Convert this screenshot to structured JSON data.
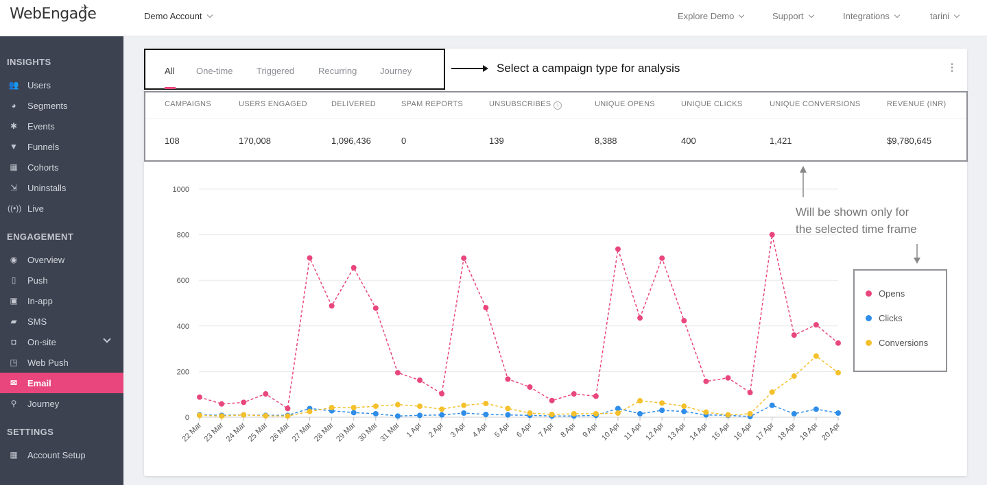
{
  "header": {
    "logo": "WebEngage",
    "account": "Demo Account",
    "nav": [
      "Explore Demo",
      "Support",
      "Integrations",
      "tarini"
    ]
  },
  "sidebar": {
    "sections": [
      {
        "title": "INSIGHTS",
        "items": [
          {
            "label": "Users",
            "icon": "users-icon"
          },
          {
            "label": "Segments",
            "icon": "pie-icon"
          },
          {
            "label": "Events",
            "icon": "star-icon"
          },
          {
            "label": "Funnels",
            "icon": "funnel-icon"
          },
          {
            "label": "Cohorts",
            "icon": "grid-icon"
          },
          {
            "label": "Uninstalls",
            "icon": "exit-icon"
          },
          {
            "label": "Live",
            "icon": "broadcast-icon"
          }
        ]
      },
      {
        "title": "ENGAGEMENT",
        "items": [
          {
            "label": "Overview",
            "icon": "eye-icon"
          },
          {
            "label": "Push",
            "icon": "mobile-icon"
          },
          {
            "label": "In-app",
            "icon": "inapp-icon"
          },
          {
            "label": "SMS",
            "icon": "chat-icon"
          },
          {
            "label": "On-site",
            "icon": "onsite-icon"
          },
          {
            "label": "Web Push",
            "icon": "window-icon"
          },
          {
            "label": "Email",
            "icon": "mail-icon",
            "active": true
          },
          {
            "label": "Journey",
            "icon": "rocket-icon"
          }
        ]
      },
      {
        "title": "SETTINGS",
        "items": [
          {
            "label": "Account Setup",
            "icon": "settings-grid-icon"
          }
        ]
      }
    ]
  },
  "tabs": [
    "All",
    "One-time",
    "Triggered",
    "Recurring",
    "Journey"
  ],
  "selected_tab": "All",
  "annotation_tabs": "Select a campaign type for analysis",
  "annotation_stats": [
    "Will be shown only for",
    "the selected time frame"
  ],
  "stats": {
    "headers": [
      "CAMPAIGNS",
      "USERS ENGAGED",
      "DELIVERED",
      "SPAM REPORTS",
      "UNSUBSCRIBES",
      "UNIQUE OPENS",
      "UNIQUE CLICKS",
      "UNIQUE CONVERSIONS",
      "REVENUE (INR)"
    ],
    "values": [
      "108",
      "170,008",
      "1,096,436",
      "0",
      "139",
      "8,388",
      "400",
      "1,421",
      "$9,780,645"
    ]
  },
  "colors": {
    "accent": "#e8467c",
    "opens": "#e8467c",
    "clicks": "#2e8de8",
    "conversions": "#f4c02c"
  },
  "chart_data": {
    "type": "line",
    "categories": [
      "22 Mar",
      "23 Mar",
      "24 Mar",
      "25 Mar",
      "26 Mar",
      "27 Mar",
      "28 Mar",
      "29 Mar",
      "30 Mar",
      "31 Mar",
      "1 Apr",
      "2 Apr",
      "3 Apr",
      "4 Apr",
      "5 Apr",
      "6 Apr",
      "7 Apr",
      "8 Apr",
      "9 Apr",
      "10 Apr",
      "11 Apr",
      "12 Apr",
      "13 Apr",
      "14 Apr",
      "15 Apr",
      "16 Apr",
      "17 Apr",
      "18 Apr",
      "19 Apr",
      "20 Apr"
    ],
    "ylim": [
      0,
      1000
    ],
    "yticks": [
      0,
      200,
      400,
      600,
      800,
      1000
    ],
    "series": [
      {
        "name": "Opens",
        "color": "#e8467c",
        "values": [
          88,
          58,
          65,
          102,
          38,
          698,
          488,
          655,
          478,
          195,
          162,
          103,
          697,
          480,
          167,
          132,
          73,
          102,
          92,
          737,
          435,
          697,
          423,
          157,
          172,
          108,
          800,
          360,
          405,
          325
        ]
      },
      {
        "name": "Clicks",
        "color": "#2e8de8",
        "values": [
          10,
          8,
          10,
          8,
          8,
          38,
          28,
          20,
          15,
          5,
          8,
          10,
          18,
          12,
          10,
          8,
          5,
          5,
          8,
          38,
          15,
          30,
          25,
          10,
          8,
          3,
          52,
          15,
          35,
          18
        ]
      },
      {
        "name": "Conversions",
        "color": "#f4c02c",
        "values": [
          8,
          5,
          10,
          6,
          5,
          25,
          42,
          42,
          48,
          55,
          48,
          35,
          52,
          60,
          38,
          18,
          12,
          15,
          15,
          18,
          72,
          62,
          48,
          22,
          10,
          15,
          110,
          180,
          268,
          195
        ]
      }
    ],
    "legend": "right"
  }
}
